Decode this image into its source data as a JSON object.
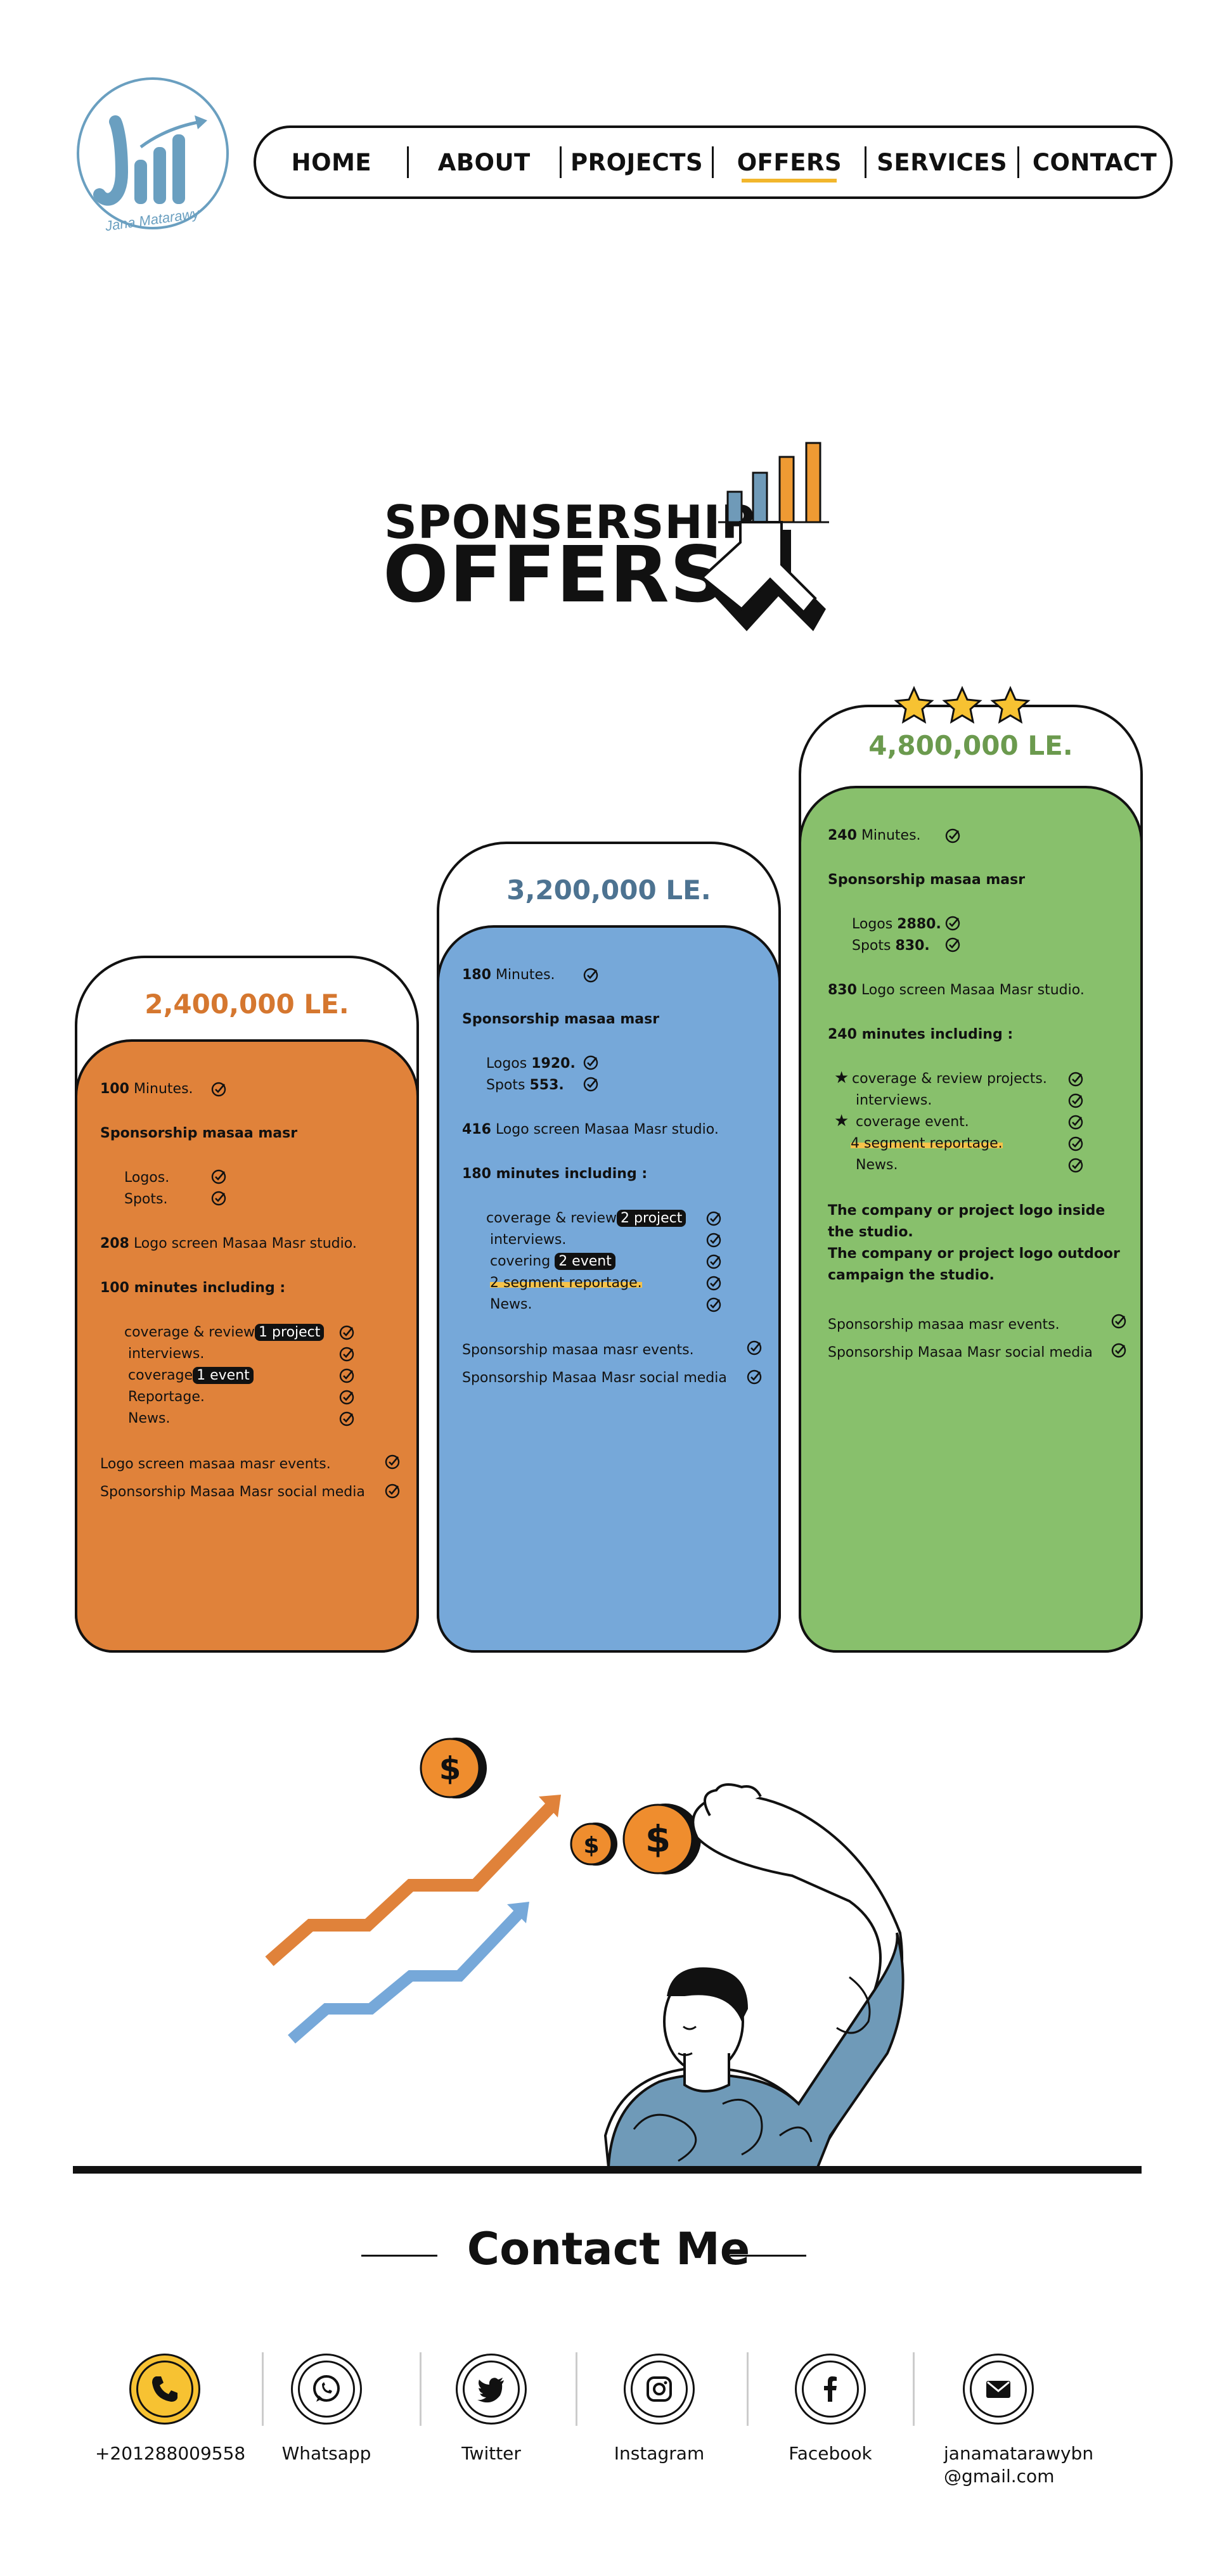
{
  "brand": {
    "logo_text": "Jana Matarawy",
    "color": "#6a9fc0"
  },
  "nav": {
    "items": [
      {
        "label": "HOME"
      },
      {
        "label": "ABOUT"
      },
      {
        "label": "PROJECTS"
      },
      {
        "label": "OFFERS",
        "active": true
      },
      {
        "label": "SERVICES"
      },
      {
        "label": "CONTACT"
      }
    ]
  },
  "hero": {
    "subtitle": "SPONSERSHIP",
    "title": "OFFERS"
  },
  "offers": {
    "bronze": {
      "price": "2,400,000 LE.",
      "price_color": "#d5772f",
      "body_color": "#e0823a",
      "lines": {
        "minutes_num": "100",
        "minutes": "Minutes.",
        "sponsorship": "Sponsorship masaa masr",
        "logos": "Logos.",
        "spots": "Spots.",
        "logo_screen_num": "208",
        "logo_screen": "Logo screen Masaa Masr studio.",
        "including": "100 minutes including :",
        "coverage": "coverage & review",
        "coverage_tag": "1 project",
        "interviews": "interviews.",
        "coverage2": "coverage",
        "coverage2_tag": "1 event",
        "reportage": "Reportage.",
        "news": "News.",
        "events": "Logo screen masaa masr events.",
        "social": "Sponsorship Masaa Masr social media"
      }
    },
    "silver": {
      "price": "3,200,000 LE.",
      "price_color": "#4d7391",
      "body_color": "#76a8d9",
      "lines": {
        "minutes_num": "180",
        "minutes": "Minutes.",
        "sponsorship": "Sponsorship masaa masr",
        "logos": "Logos",
        "logos_num": "1920.",
        "spots": "Spots",
        "spots_num": "553.",
        "logo_screen_num": "416",
        "logo_screen": "Logo screen Masaa Masr studio.",
        "including": "180 minutes including :",
        "coverage": "coverage & review",
        "coverage_tag": "2 project",
        "interviews": "interviews.",
        "covering": "covering",
        "covering_tag": "2 event",
        "segment": "2 segment reportage.",
        "news": "News.",
        "events": "Sponsorship masaa masr events.",
        "social": "Sponsorship Masaa Masr social media"
      }
    },
    "gold": {
      "price": "4,800,000 LE.",
      "price_color": "#6b9a4e",
      "body_color": "#88c06c",
      "rating": 3,
      "lines": {
        "minutes_num": "240",
        "minutes": "Minutes.",
        "sponsorship": "Sponsorship masaa masr",
        "logos": "Logos",
        "logos_num": "2880.",
        "spots": "Spots",
        "spots_num": "830.",
        "logo_screen_num": "830",
        "logo_screen": "Logo screen Masaa Masr studio.",
        "including": "240 minutes including :",
        "coverage": "coverage & review  projects.",
        "interviews": "interviews.",
        "coverage2": "coverage  event.",
        "segment": "4 segment reportage.",
        "news": "News.",
        "inside1": "The company or project logo inside",
        "inside2": "the studio.",
        "outdoor1": "The company or project logo outdoor",
        "outdoor2": "campaign the studio.",
        "events": "Sponsorship masaa masr events.",
        "social": "Sponsorship Masaa Masr social media"
      }
    }
  },
  "contact": {
    "title": "Contact Me",
    "items": [
      {
        "label": "+201288009558",
        "icon": "phone-icon"
      },
      {
        "label": "Whatsapp",
        "icon": "whatsapp-icon"
      },
      {
        "label": "Twitter",
        "icon": "twitter-icon"
      },
      {
        "label": "Instagram",
        "icon": "instagram-icon"
      },
      {
        "label": "Facebook",
        "icon": "facebook-icon"
      },
      {
        "label_line1": "janamatarawybn",
        "label_line2": "@gmail.com",
        "icon": "email-icon"
      }
    ]
  }
}
